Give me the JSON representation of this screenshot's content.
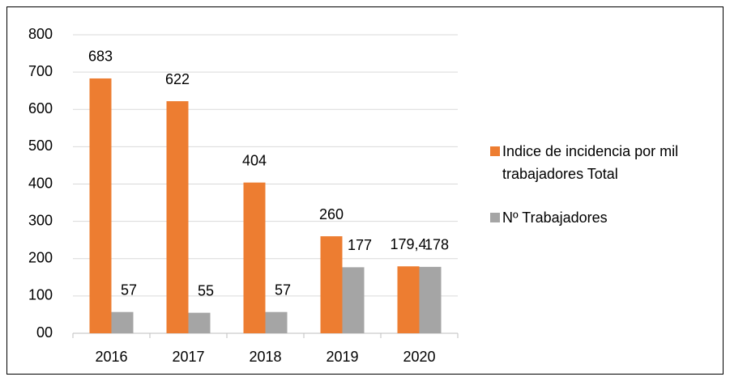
{
  "chart_data": {
    "type": "bar",
    "categories": [
      "2016",
      "2017",
      "2018",
      "2019",
      "2020"
    ],
    "series": [
      {
        "name": "Indice de incidencia por mil trabajadores Total",
        "color": "#ed7d31",
        "values": [
          683,
          622,
          404,
          260,
          179.4
        ],
        "value_labels": [
          "683",
          "622",
          "404",
          "260",
          "179,4"
        ]
      },
      {
        "name": "Nº Trabajadores",
        "color": "#a5a5a5",
        "values": [
          57,
          55,
          57,
          177,
          178
        ]
      }
    ],
    "ylim": [
      0,
      800
    ],
    "yticks": [
      {
        "value": 0,
        "label": "00"
      },
      100,
      200,
      300,
      400,
      500,
      600,
      700,
      800
    ],
    "grid": true,
    "legend": "right"
  }
}
